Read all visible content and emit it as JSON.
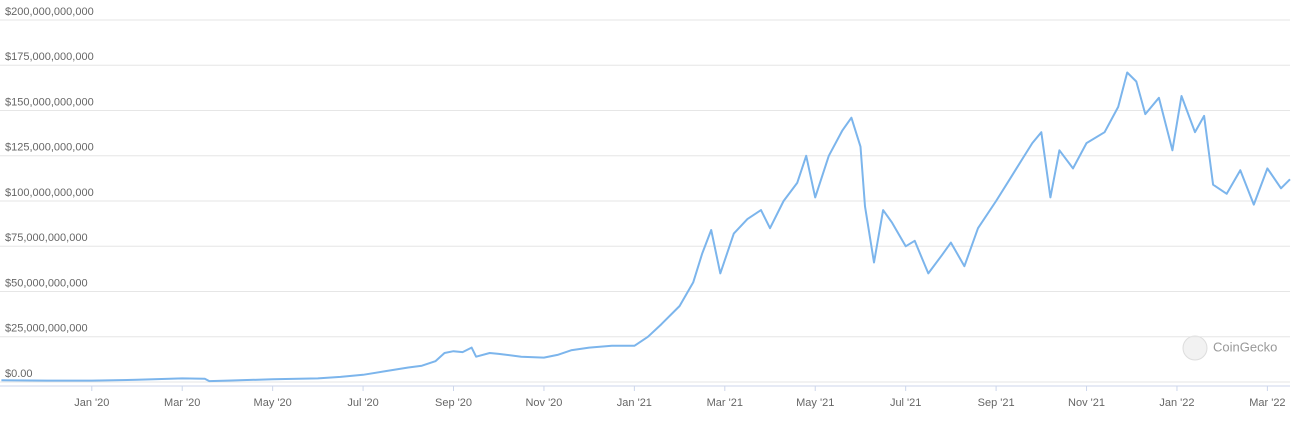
{
  "chart_data": {
    "type": "line",
    "color": "#7cb5ec",
    "grid": true,
    "watermark": "CoinGecko",
    "xlim": [
      -2.03,
      26.5
    ],
    "xticks": [
      {
        "value": 0,
        "label": "Jan '20"
      },
      {
        "value": 2,
        "label": "Mar '20"
      },
      {
        "value": 4,
        "label": "May '20"
      },
      {
        "value": 6,
        "label": "Jul '20"
      },
      {
        "value": 8,
        "label": "Sep '20"
      },
      {
        "value": 10,
        "label": "Nov '20"
      },
      {
        "value": 12,
        "label": "Jan '21"
      },
      {
        "value": 14,
        "label": "Mar '21"
      },
      {
        "value": 16,
        "label": "May '21"
      },
      {
        "value": 18,
        "label": "Jul '21"
      },
      {
        "value": 20,
        "label": "Sep '21"
      },
      {
        "value": 22,
        "label": "Nov '21"
      },
      {
        "value": 24,
        "label": "Jan '22"
      },
      {
        "value": 26,
        "label": "Mar '22"
      }
    ],
    "ylim": [
      0,
      200000000000
    ],
    "yticks": [
      {
        "value": 0,
        "label": "$0.00"
      },
      {
        "value": 25000000000,
        "label": "$25,000,000,000"
      },
      {
        "value": 50000000000,
        "label": "$50,000,000,000"
      },
      {
        "value": 75000000000,
        "label": "$75,000,000,000"
      },
      {
        "value": 100000000000,
        "label": "$100,000,000,000"
      },
      {
        "value": 125000000000,
        "label": "$125,000,000,000"
      },
      {
        "value": 150000000000,
        "label": "$150,000,000,000"
      },
      {
        "value": 175000000000,
        "label": "$175,000,000,000"
      },
      {
        "value": 200000000000,
        "label": "$200,000,000,000"
      }
    ],
    "x": [
      -2,
      -1,
      0,
      1,
      2,
      2.5,
      2.6,
      3,
      4,
      5,
      5.5,
      6,
      6.5,
      7,
      7.3,
      7.6,
      7.8,
      8,
      8.2,
      8.4,
      8.5,
      8.8,
      9,
      9.5,
      10,
      10.3,
      10.6,
      11,
      11.5,
      12,
      12.3,
      12.6,
      13,
      13.3,
      13.5,
      13.7,
      13.9,
      14.2,
      14.5,
      14.8,
      15,
      15.3,
      15.6,
      15.8,
      16,
      16.3,
      16.6,
      16.8,
      17,
      17.1,
      17.3,
      17.5,
      17.7,
      18,
      18.2,
      18.5,
      18.8,
      19,
      19.3,
      19.6,
      20,
      20.3,
      20.6,
      20.8,
      21,
      21.2,
      21.4,
      21.7,
      22,
      22.4,
      22.7,
      22.9,
      23.1,
      23.3,
      23.6,
      23.9,
      24.1,
      24.4,
      24.6,
      24.8,
      25.1,
      25.4,
      25.7,
      26,
      26.3,
      26.5
    ],
    "values": [
      1000000000,
      800000000,
      800000000,
      1200000000,
      2000000000,
      1800000000,
      500000000,
      800000000,
      1500000000,
      2000000000,
      2800000000,
      4000000000,
      6000000000,
      8000000000,
      9000000000,
      11500000000,
      16000000000,
      17000000000,
      16500000000,
      19000000000,
      14000000000,
      16000000000,
      15500000000,
      14000000000,
      13500000000,
      15000000000,
      17500000000,
      19000000000,
      20000000000,
      20000000000,
      25000000000,
      32000000000,
      42000000000,
      55000000000,
      71000000000,
      84000000000,
      60000000000,
      82000000000,
      90000000000,
      95000000000,
      85000000000,
      100000000000,
      110000000000,
      125000000000,
      102000000000,
      125000000000,
      139000000000,
      146000000000,
      130000000000,
      97000000000,
      66000000000,
      95000000000,
      88000000000,
      75000000000,
      78000000000,
      60000000000,
      70000000000,
      77000000000,
      64000000000,
      85000000000,
      100000000000,
      112000000000,
      124000000000,
      132000000000,
      138000000000,
      102000000000,
      128000000000,
      118000000000,
      132000000000,
      138000000000,
      152000000000,
      171000000000,
      166000000000,
      148000000000,
      157000000000,
      128000000000,
      158000000000,
      138000000000,
      147000000000,
      109000000000,
      104000000000,
      117000000000,
      98000000000,
      118000000000,
      107000000000,
      112000000000
    ]
  }
}
